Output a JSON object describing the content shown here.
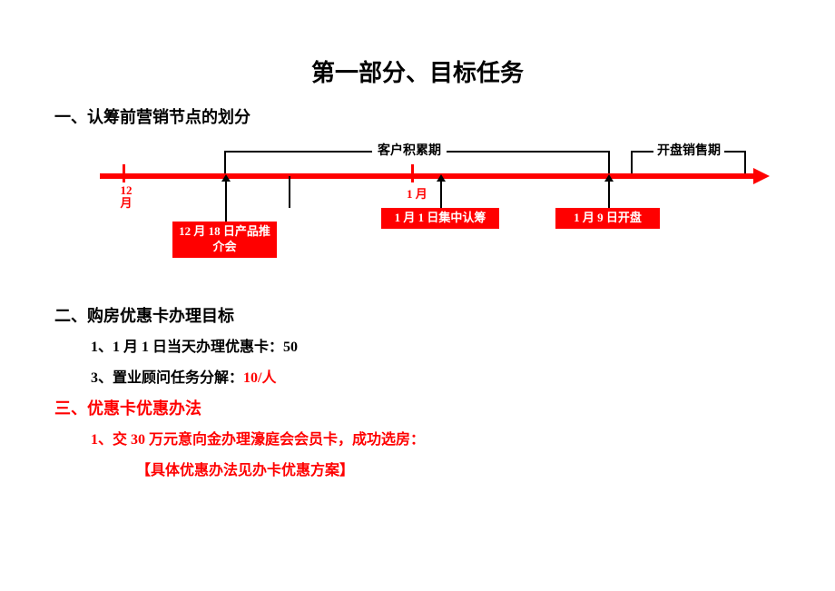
{
  "colors": {
    "red": "#ff0000",
    "black": "#000000",
    "white": "#ffffff"
  },
  "title": "第一部分、目标任务",
  "section1": {
    "heading": "一、认筹前营销节点的划分",
    "timeline": {
      "start_tick_label": "12月",
      "mid_tick_label": "1 月",
      "bracket1_label": "客户积累期",
      "bracket2_label": "开盘销售期",
      "events": [
        {
          "label": "12 月 18 日产品推介会"
        },
        {
          "label": "1 月 1 日集中认筹"
        },
        {
          "label": "1 月 9 日开盘"
        }
      ]
    }
  },
  "section2": {
    "heading": "二、购房优惠卡办理目标",
    "line1_prefix": "1、1 月 1 日当天办理优惠卡：",
    "line1_value": "50",
    "line2_prefix": "3、置业顾问任务分解：",
    "line2_value": "10/人"
  },
  "section3": {
    "heading": "三、优惠卡优惠办法",
    "line1": "1、交 30 万元意向金办理濠庭会会员卡，成功选房：",
    "line2": "【具体优惠办法见办卡优惠方案】"
  }
}
